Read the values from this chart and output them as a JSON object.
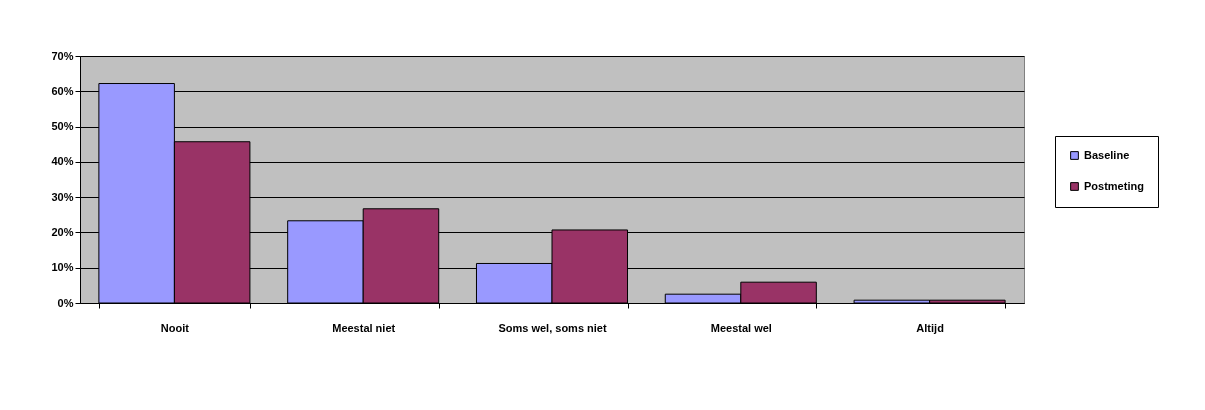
{
  "chart_data": {
    "type": "bar",
    "categories": [
      "Nooit",
      "Meestal niet",
      "Soms wel, soms niet",
      "Meestal wel",
      "Altijd"
    ],
    "series": [
      {
        "name": "Baseline",
        "color": "#9999ff",
        "values": [
          62.2,
          23.3,
          11.2,
          2.5,
          0.8
        ]
      },
      {
        "name": "Postmeting",
        "color": "#993366",
        "values": [
          45.7,
          26.7,
          20.7,
          5.9,
          0.8
        ]
      }
    ],
    "ylim": [
      0,
      70
    ],
    "yticks": [
      {
        "value": 0,
        "label": "0%"
      },
      {
        "value": 10,
        "label": "10%"
      },
      {
        "value": 20,
        "label": "20%"
      },
      {
        "value": 30,
        "label": "30%"
      },
      {
        "value": 40,
        "label": "40%"
      },
      {
        "value": 50,
        "label": "50%"
      },
      {
        "value": 60,
        "label": "60%"
      },
      {
        "value": 70,
        "label": "70%"
      }
    ],
    "grid": "y",
    "legend": "right"
  }
}
